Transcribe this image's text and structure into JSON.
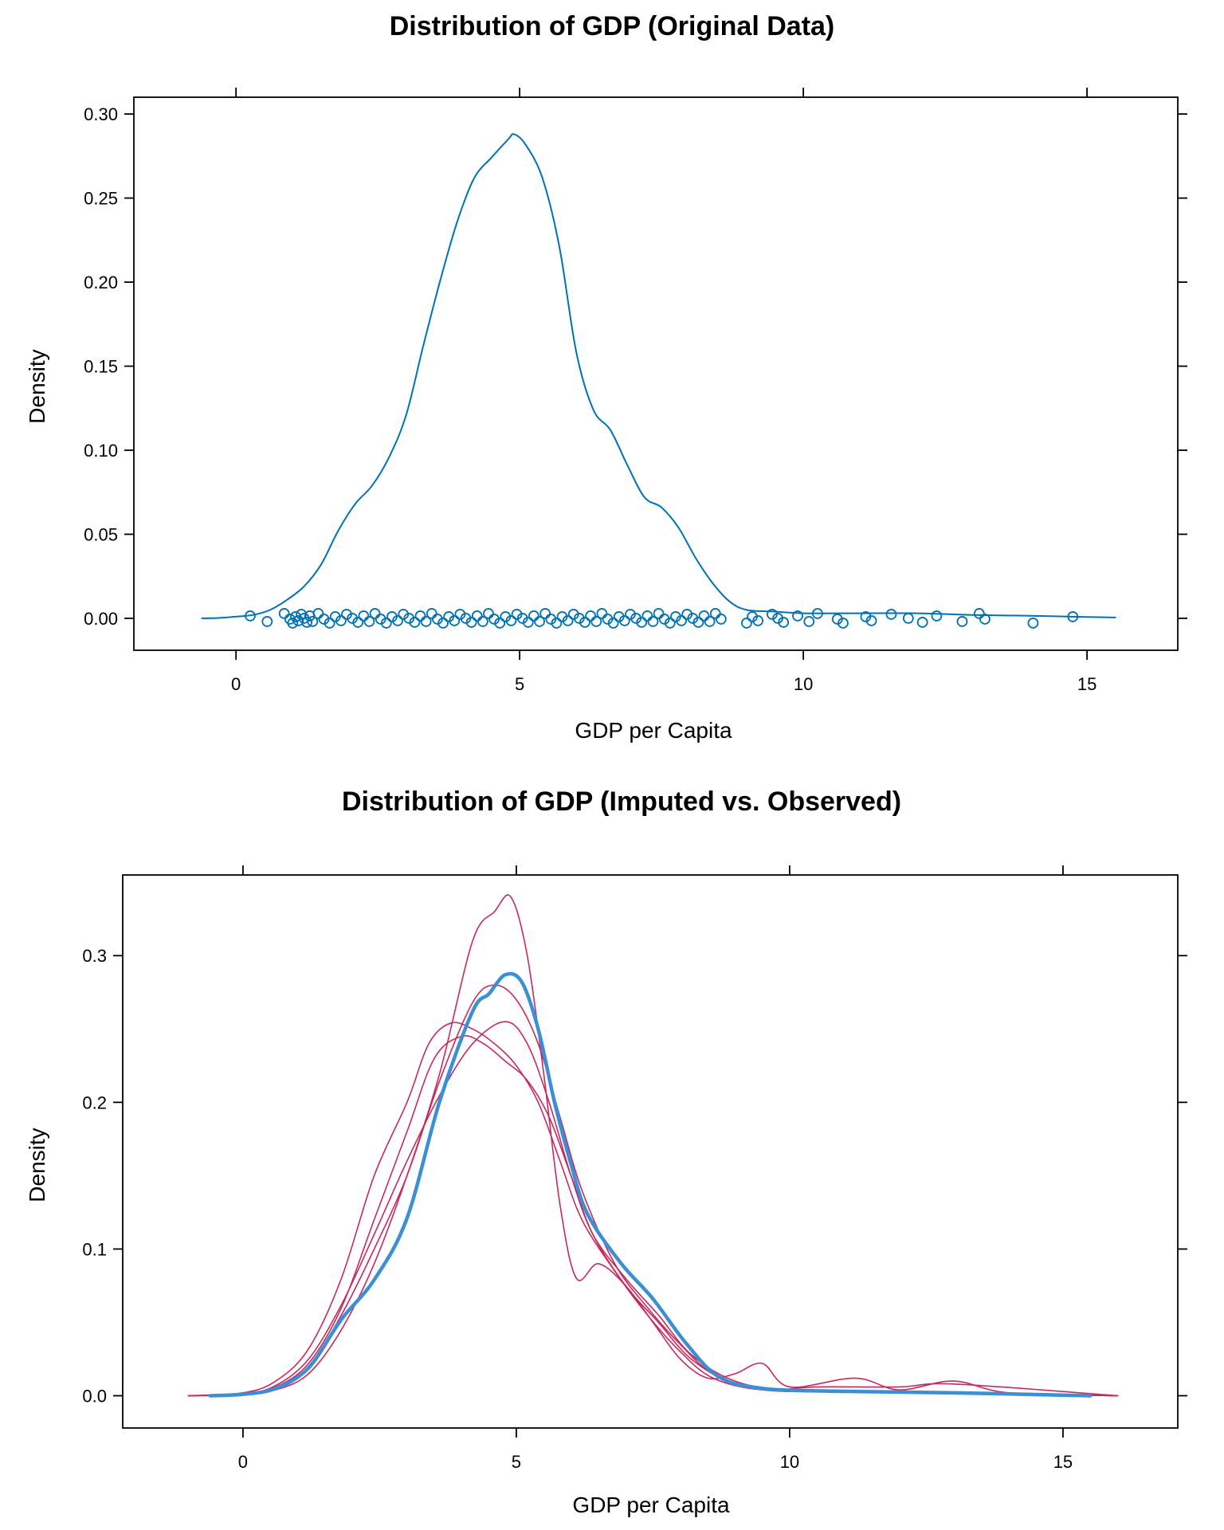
{
  "chart_data": [
    {
      "type": "line",
      "title": "Distribution of GDP (Original Data)",
      "xlabel": "GDP per Capita",
      "ylabel": "Density",
      "xlim": [
        -1.8,
        16.6
      ],
      "ylim": [
        -0.019,
        0.31
      ],
      "x_ticks": [
        0,
        5,
        10,
        15
      ],
      "x_tick_labels": [
        "0",
        "5",
        "10",
        "15"
      ],
      "y_ticks": [
        0.0,
        0.05,
        0.1,
        0.15,
        0.2,
        0.25,
        0.3
      ],
      "y_tick_labels": [
        "0.00",
        "0.05",
        "0.10",
        "0.15",
        "0.20",
        "0.25",
        "0.30"
      ],
      "grid": false,
      "colors": {
        "observed": "#0072B2"
      },
      "series": [
        {
          "x": [
            -0.6,
            -0.3,
            0.0,
            0.3,
            0.6,
            0.9,
            1.2,
            1.5,
            1.8,
            2.1,
            2.4,
            2.7,
            3.0,
            3.3,
            3.6,
            3.9,
            4.2,
            4.5,
            4.8,
            4.9,
            5.1,
            5.4,
            5.7,
            6.0,
            6.3,
            6.6,
            6.9,
            7.2,
            7.5,
            7.8,
            8.1,
            8.4,
            8.7,
            9.0,
            9.5,
            10.0,
            11.0,
            12.0,
            13.0,
            14.0,
            15.0,
            15.5
          ],
          "y": [
            0.0,
            0.0002,
            0.001,
            0.002,
            0.005,
            0.011,
            0.019,
            0.032,
            0.052,
            0.068,
            0.079,
            0.096,
            0.121,
            0.162,
            0.201,
            0.236,
            0.262,
            0.274,
            0.285,
            0.288,
            0.282,
            0.262,
            0.221,
            0.158,
            0.124,
            0.112,
            0.091,
            0.072,
            0.066,
            0.054,
            0.036,
            0.021,
            0.01,
            0.005,
            0.004,
            0.003,
            0.003,
            0.003,
            0.002,
            0.0015,
            0.0008,
            0.0005
          ]
        }
      ],
      "rug_points": [
        0.25,
        0.55,
        0.85,
        0.95,
        1.0,
        1.05,
        1.1,
        1.15,
        1.2,
        1.25,
        1.3,
        1.35,
        1.45,
        1.55,
        1.65,
        1.75,
        1.85,
        1.95,
        2.05,
        2.15,
        2.25,
        2.35,
        2.45,
        2.55,
        2.65,
        2.75,
        2.85,
        2.95,
        3.05,
        3.15,
        3.25,
        3.35,
        3.45,
        3.55,
        3.65,
        3.75,
        3.85,
        3.95,
        4.05,
        4.15,
        4.25,
        4.35,
        4.45,
        4.55,
        4.65,
        4.75,
        4.85,
        4.95,
        5.05,
        5.15,
        5.25,
        5.35,
        5.45,
        5.55,
        5.65,
        5.75,
        5.85,
        5.95,
        6.05,
        6.15,
        6.25,
        6.35,
        6.45,
        6.55,
        6.65,
        6.75,
        6.85,
        6.95,
        7.05,
        7.15,
        7.25,
        7.35,
        7.45,
        7.55,
        7.65,
        7.75,
        7.85,
        7.95,
        8.05,
        8.15,
        8.25,
        8.35,
        8.45,
        8.55,
        9.0,
        9.1,
        9.2,
        9.45,
        9.55,
        9.65,
        9.9,
        10.1,
        10.25,
        10.6,
        10.7,
        11.1,
        11.2,
        11.55,
        11.85,
        12.1,
        12.35,
        12.8,
        13.1,
        13.2,
        14.05,
        14.75
      ]
    },
    {
      "type": "line",
      "title": "Distribution of GDP (Imputed vs. Observed)",
      "xlabel": "GDP per Capita",
      "ylabel": "Density",
      "xlim": [
        -2.2,
        17.1
      ],
      "ylim": [
        -0.022,
        0.355
      ],
      "x_ticks": [
        0,
        5,
        10,
        15
      ],
      "x_tick_labels": [
        "0",
        "5",
        "10",
        "15"
      ],
      "y_ticks": [
        0.0,
        0.1,
        0.2,
        0.3
      ],
      "y_tick_labels": [
        "0.0",
        "0.1",
        "0.2",
        "0.3"
      ],
      "grid": false,
      "colors": {
        "observed": "#3A8FD6",
        "imputed": "#C62A5B"
      },
      "series": [
        {
          "role": "observed",
          "x": [
            -0.6,
            0.0,
            0.6,
            1.2,
            1.8,
            2.4,
            3.0,
            3.6,
            4.2,
            4.5,
            4.8,
            5.1,
            5.4,
            5.7,
            6.0,
            6.3,
            6.9,
            7.5,
            8.1,
            8.7,
            9.5,
            11.0,
            13.0,
            15.5
          ],
          "y": [
            0.0,
            0.001,
            0.005,
            0.019,
            0.052,
            0.079,
            0.121,
            0.201,
            0.262,
            0.274,
            0.287,
            0.282,
            0.25,
            0.2,
            0.158,
            0.124,
            0.091,
            0.066,
            0.036,
            0.013,
            0.005,
            0.003,
            0.002,
            0.0
          ]
        },
        {
          "role": "imputed",
          "x": [
            -1.0,
            0.0,
            0.6,
            1.2,
            1.8,
            2.4,
            3.0,
            3.6,
            4.2,
            4.6,
            4.9,
            5.2,
            5.5,
            5.8,
            6.1,
            6.5,
            7.0,
            7.5,
            8.0,
            8.5,
            9.0,
            9.5,
            10.0,
            11.2,
            12.0,
            13.0,
            14.0,
            16.0
          ],
          "y": [
            0.0,
            0.001,
            0.004,
            0.015,
            0.045,
            0.09,
            0.15,
            0.22,
            0.31,
            0.33,
            0.34,
            0.3,
            0.22,
            0.13,
            0.08,
            0.09,
            0.075,
            0.05,
            0.025,
            0.012,
            0.015,
            0.022,
            0.006,
            0.012,
            0.004,
            0.01,
            0.002,
            0.0
          ]
        },
        {
          "role": "imputed",
          "x": [
            -1.0,
            0.0,
            0.6,
            1.2,
            1.8,
            2.4,
            3.0,
            3.4,
            3.8,
            4.2,
            4.6,
            5.0,
            5.4,
            5.8,
            6.2,
            6.8,
            7.4,
            8.0,
            8.6,
            9.5,
            10.5,
            12.0,
            13.0,
            16.0
          ],
          "y": [
            0.0,
            0.002,
            0.01,
            0.032,
            0.08,
            0.15,
            0.2,
            0.24,
            0.254,
            0.25,
            0.24,
            0.225,
            0.2,
            0.16,
            0.12,
            0.085,
            0.055,
            0.03,
            0.012,
            0.004,
            0.006,
            0.006,
            0.008,
            0.0
          ]
        },
        {
          "role": "imputed",
          "x": [
            -1.0,
            0.0,
            0.6,
            1.2,
            1.8,
            2.4,
            3.0,
            3.5,
            4.0,
            4.4,
            4.8,
            5.2,
            5.6,
            6.0,
            6.4,
            7.0,
            7.6,
            8.2,
            9.0,
            10.0,
            12.0,
            16.0
          ],
          "y": [
            0.0,
            0.001,
            0.006,
            0.022,
            0.06,
            0.12,
            0.18,
            0.23,
            0.245,
            0.24,
            0.228,
            0.215,
            0.19,
            0.15,
            0.11,
            0.075,
            0.05,
            0.025,
            0.008,
            0.004,
            0.003,
            0.0
          ]
        },
        {
          "role": "imputed",
          "x": [
            -1.0,
            0.0,
            0.6,
            1.2,
            1.8,
            2.4,
            3.0,
            3.6,
            4.2,
            4.6,
            5.0,
            5.4,
            5.8,
            6.2,
            6.8,
            7.4,
            8.0,
            8.6,
            9.5,
            11.0,
            13.0,
            16.0
          ],
          "y": [
            0.0,
            0.001,
            0.005,
            0.02,
            0.055,
            0.1,
            0.15,
            0.215,
            0.268,
            0.28,
            0.27,
            0.24,
            0.19,
            0.14,
            0.09,
            0.06,
            0.035,
            0.015,
            0.004,
            0.003,
            0.002,
            0.0
          ]
        },
        {
          "role": "imputed",
          "x": [
            -1.0,
            0.0,
            0.6,
            1.2,
            1.8,
            2.4,
            3.0,
            3.6,
            4.2,
            4.8,
            5.2,
            5.6,
            6.0,
            6.4,
            7.0,
            7.6,
            8.2,
            9.0,
            10.0,
            12.0,
            16.0
          ],
          "y": [
            0.0,
            0.001,
            0.007,
            0.025,
            0.062,
            0.11,
            0.16,
            0.205,
            0.24,
            0.255,
            0.24,
            0.2,
            0.15,
            0.11,
            0.08,
            0.055,
            0.028,
            0.01,
            0.004,
            0.003,
            0.0
          ]
        }
      ]
    }
  ]
}
